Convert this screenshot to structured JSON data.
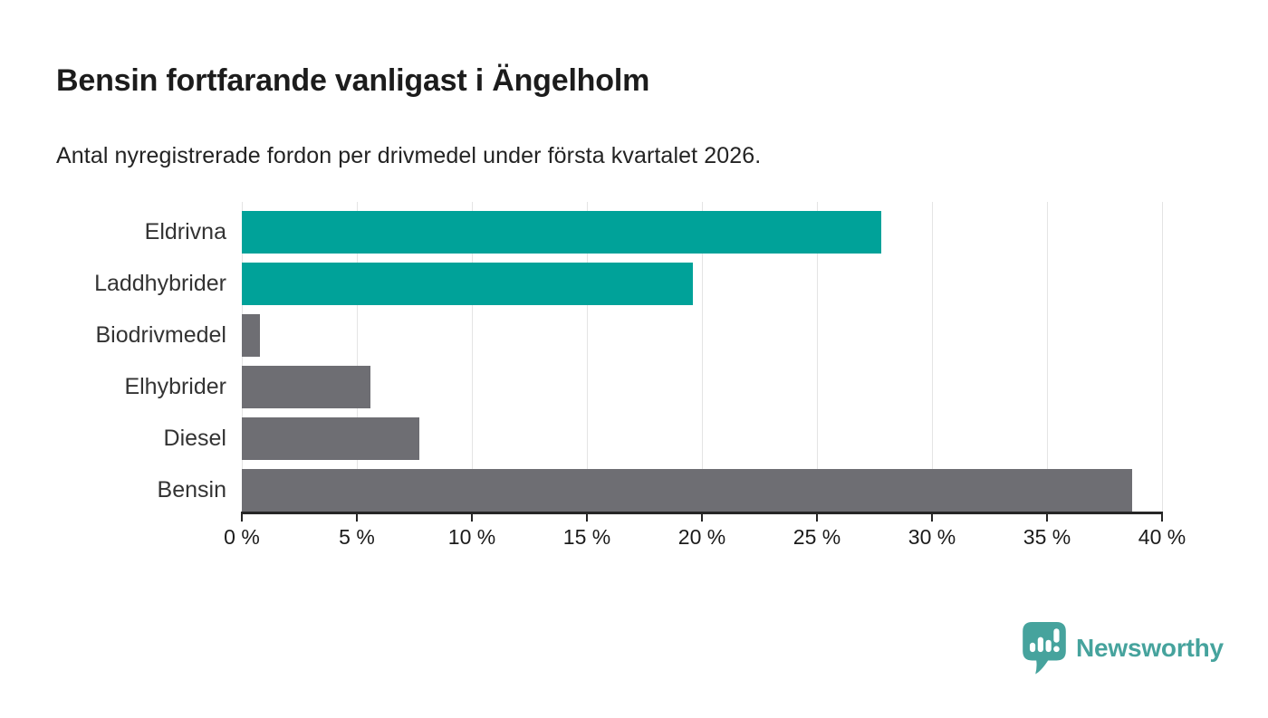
{
  "header": {
    "title": "Bensin fortfarande vanligast i Ängelholm",
    "subtitle": "Antal nyregistrerade fordon per drivmedel under första kvartalet 2026."
  },
  "chart_data": {
    "type": "bar",
    "orientation": "horizontal",
    "title": "Bensin fortfarande vanligast i Ängelholm",
    "subtitle": "Antal nyregistrerade fordon per drivmedel under första kvartalet 2026.",
    "categories": [
      "Eldrivna",
      "Laddhybrider",
      "Biodrivmedel",
      "Elhybrider",
      "Diesel",
      "Bensin"
    ],
    "values": [
      27.8,
      19.6,
      0.8,
      5.6,
      7.7,
      38.7
    ],
    "unit": "%",
    "bar_colors": [
      "#00A299",
      "#00A299",
      "#6E6E73",
      "#6E6E73",
      "#6E6E73",
      "#6E6E73"
    ],
    "x_axis": {
      "min": 0,
      "max": 40,
      "tick_step": 5,
      "tick_labels": [
        "0 %",
        "5 %",
        "10 %",
        "15 %",
        "20 %",
        "25 %",
        "30 %",
        "35 %",
        "40 %"
      ]
    },
    "grid": "vertical-light",
    "legend": "none"
  },
  "footer": {
    "brand": "Newsworthy"
  },
  "colors": {
    "teal": "#00A299",
    "gray": "#6E6E73",
    "axis": "#262626",
    "gridline": "#E4E4E4",
    "title_text": "#1C1C1C",
    "label_text": "#333333",
    "logo_teal": "#46A39D"
  },
  "icons": {
    "logo_mark": "newsworthy-bubble-bar-chart-icon"
  }
}
